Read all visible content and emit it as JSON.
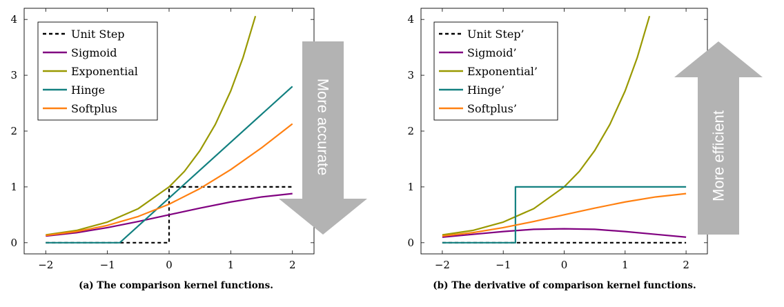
{
  "colors": {
    "unit_step": "#000000",
    "sigmoid": "#800080",
    "exponential": "#999900",
    "hinge": "#128080",
    "softplus": "#ff8011",
    "arrow": "#b3b3b3",
    "arrow_text": "#ffffff"
  },
  "chart_data": [
    {
      "type": "line",
      "caption": "(a) The comparison kernel functions.",
      "xlim": [
        -2.35,
        2.35
      ],
      "ylim": [
        -0.2,
        4.2
      ],
      "x_ticks": [
        -2,
        -1,
        0,
        1,
        2
      ],
      "x_tick_labels": [
        "−2",
        "−1",
        "0",
        "1",
        "2"
      ],
      "y_ticks": [
        0,
        1,
        2,
        3,
        4
      ],
      "y_tick_labels": [
        "0",
        "1",
        "2",
        "3",
        "4"
      ],
      "grid": false,
      "legend_position": "top-left",
      "arrow": {
        "direction": "down",
        "label": "More accurate"
      },
      "series": [
        {
          "name": "Unit Step",
          "color_key": "unit_step",
          "dashed": true,
          "x": [
            -2,
            0,
            0,
            2
          ],
          "y": [
            0,
            0,
            1,
            1
          ]
        },
        {
          "name": "Sigmoid",
          "color_key": "sigmoid",
          "dashed": false,
          "x": [
            -2,
            -1.5,
            -1,
            -0.5,
            0,
            0.5,
            1,
            1.5,
            2
          ],
          "y": [
            0.12,
            0.18,
            0.27,
            0.38,
            0.5,
            0.62,
            0.73,
            0.82,
            0.88
          ]
        },
        {
          "name": "Exponential",
          "color_key": "exponential",
          "dashed": false,
          "x": [
            -2,
            -1.5,
            -1,
            -0.5,
            0,
            0.25,
            0.5,
            0.75,
            1,
            1.2,
            1.4
          ],
          "y": [
            0.14,
            0.22,
            0.37,
            0.61,
            1.0,
            1.28,
            1.65,
            2.12,
            2.72,
            3.32,
            4.06
          ]
        },
        {
          "name": "Hinge",
          "color_key": "hinge",
          "dashed": false,
          "x": [
            -2,
            -0.8,
            2
          ],
          "y": [
            0,
            0,
            2.8
          ]
        },
        {
          "name": "Softplus",
          "color_key": "softplus",
          "dashed": false,
          "x": [
            -2,
            -1.5,
            -1,
            -0.5,
            0,
            0.5,
            1,
            1.5,
            2
          ],
          "y": [
            0.13,
            0.2,
            0.31,
            0.47,
            0.69,
            0.97,
            1.31,
            1.7,
            2.13
          ]
        }
      ]
    },
    {
      "type": "line",
      "caption": "(b) The derivative of comparison kernel functions.",
      "xlim": [
        -2.35,
        2.35
      ],
      "ylim": [
        -0.2,
        4.2
      ],
      "x_ticks": [
        -2,
        -1,
        0,
        1,
        2
      ],
      "x_tick_labels": [
        "−2",
        "−1",
        "0",
        "1",
        "2"
      ],
      "y_ticks": [
        0,
        1,
        2,
        3,
        4
      ],
      "y_tick_labels": [
        "0",
        "1",
        "2",
        "3",
        "4"
      ],
      "grid": false,
      "legend_position": "top-left",
      "arrow": {
        "direction": "up",
        "label": "More efficient"
      },
      "series": [
        {
          "name": "Unit Step’",
          "color_key": "unit_step",
          "dashed": true,
          "x": [
            -2,
            2
          ],
          "y": [
            0,
            0
          ]
        },
        {
          "name": "Sigmoid’",
          "color_key": "sigmoid",
          "dashed": false,
          "x": [
            -2,
            -1.5,
            -1,
            -0.5,
            0,
            0.5,
            1,
            1.5,
            2
          ],
          "y": [
            0.1,
            0.15,
            0.2,
            0.24,
            0.25,
            0.24,
            0.2,
            0.15,
            0.1
          ]
        },
        {
          "name": "Exponential’",
          "color_key": "exponential",
          "dashed": false,
          "x": [
            -2,
            -1.5,
            -1,
            -0.5,
            0,
            0.25,
            0.5,
            0.75,
            1,
            1.2,
            1.4
          ],
          "y": [
            0.14,
            0.22,
            0.37,
            0.61,
            1.0,
            1.28,
            1.65,
            2.12,
            2.72,
            3.32,
            4.06
          ]
        },
        {
          "name": "Hinge’",
          "color_key": "hinge",
          "dashed": false,
          "x": [
            -2,
            -0.8,
            -0.8,
            2
          ],
          "y": [
            0,
            0,
            1,
            1
          ]
        },
        {
          "name": "Softplus’",
          "color_key": "softplus",
          "dashed": false,
          "x": [
            -2,
            -1.5,
            -1,
            -0.5,
            0,
            0.5,
            1,
            1.5,
            2
          ],
          "y": [
            0.12,
            0.18,
            0.27,
            0.38,
            0.5,
            0.62,
            0.73,
            0.82,
            0.88
          ]
        }
      ]
    }
  ]
}
